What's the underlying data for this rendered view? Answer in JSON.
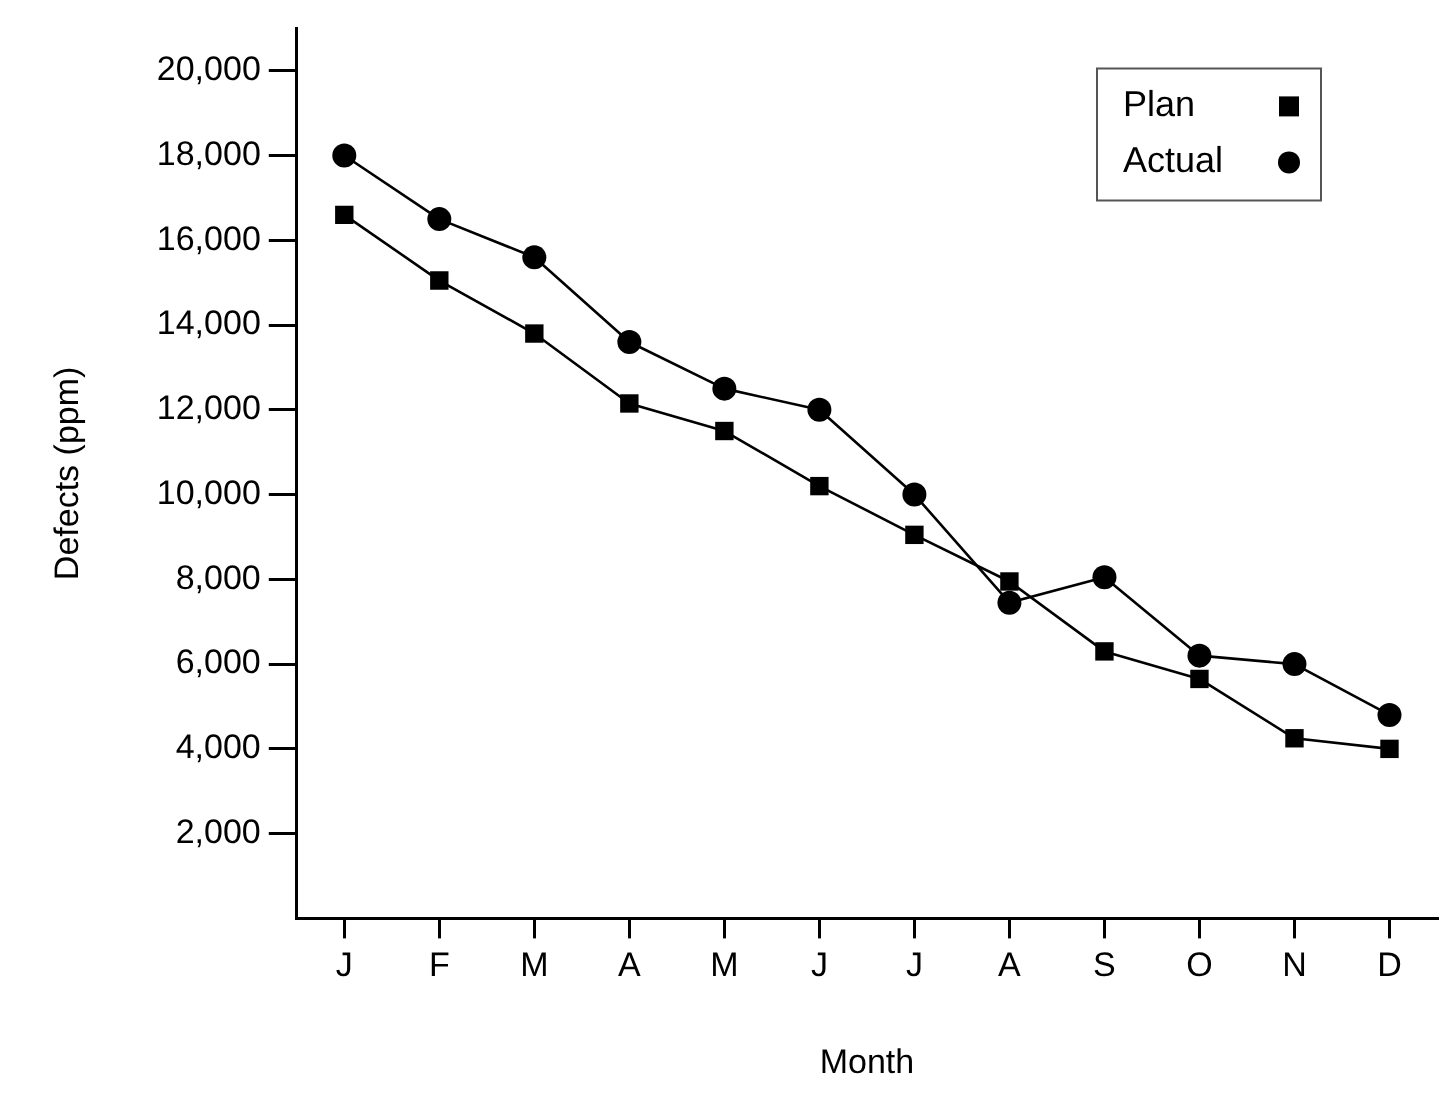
{
  "chart_data": {
    "type": "line",
    "xlabel": "Month",
    "ylabel": "Defects (ppm)",
    "categories": [
      "J",
      "F",
      "M",
      "A",
      "M",
      "J",
      "J",
      "A",
      "S",
      "O",
      "N",
      "D"
    ],
    "series": [
      {
        "name": "Plan",
        "color": "#000000",
        "marker": "square",
        "values": [
          16600,
          15050,
          13800,
          12150,
          11500,
          10200,
          9050,
          7950,
          6300,
          5650,
          4250,
          4000
        ]
      },
      {
        "name": "Actual",
        "color": "#000000",
        "marker": "circle",
        "values": [
          18000,
          16500,
          15600,
          13600,
          12500,
          12000,
          10000,
          7450,
          8050,
          6200,
          6000,
          4800
        ]
      }
    ],
    "ylim": [
      0,
      21000
    ],
    "yticks": [
      {
        "value": 2000,
        "label": "2,000"
      },
      {
        "value": 4000,
        "label": "4,000"
      },
      {
        "value": 6000,
        "label": "6,000"
      },
      {
        "value": 8000,
        "label": "8,000"
      },
      {
        "value": 10000,
        "label": "10,000"
      },
      {
        "value": 12000,
        "label": "12,000"
      },
      {
        "value": 14000,
        "label": "14,000"
      },
      {
        "value": 16000,
        "label": "16,000"
      },
      {
        "value": 18000,
        "label": "18,000"
      },
      {
        "value": 20000,
        "label": "20,000"
      }
    ],
    "grid": false,
    "legend": "top right",
    "line_style": "solid"
  }
}
